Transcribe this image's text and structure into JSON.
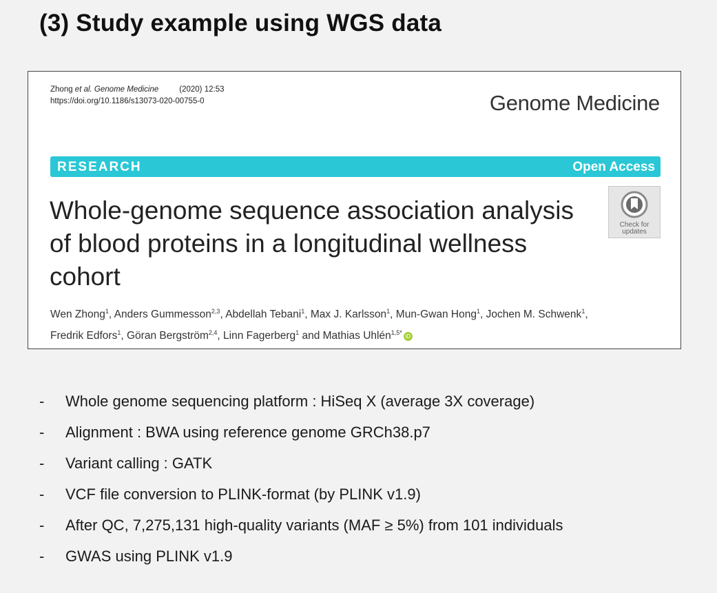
{
  "slide_title": "(3) Study example using WGS data",
  "paper": {
    "citation_authors": "Zhong",
    "citation_etal": " et al. Genome Medicine",
    "citation_year": "(2020) 12:53",
    "doi": "https://doi.org/10.1186/s13073-020-00755-0",
    "journal": "Genome Medicine",
    "banner_left": "RESEARCH",
    "banner_right": "Open Access",
    "banner_color": "#2ac7d6",
    "title": "Whole-genome sequence association analysis of blood proteins in a longitudinal wellness cohort",
    "check_updates": "Check for\nupdates",
    "authors": [
      {
        "name": "Wen Zhong",
        "sup": "1",
        "sep": ", "
      },
      {
        "name": "Anders Gummesson",
        "sup": "2,3",
        "sep": ", "
      },
      {
        "name": "Abdellah Tebani",
        "sup": "1",
        "sep": ", "
      },
      {
        "name": "Max J. Karlsson",
        "sup": "1",
        "sep": ", "
      },
      {
        "name": "Mun-Gwan Hong",
        "sup": "1",
        "sep": ", "
      },
      {
        "name": "Jochen M. Schwenk",
        "sup": "1",
        "sep": ","
      },
      {
        "name": "Fredrik Edfors",
        "sup": "1",
        "sep": ", "
      },
      {
        "name": "Göran Bergström",
        "sup": "2,4",
        "sep": ", "
      },
      {
        "name": "Linn Fagerberg",
        "sup": "1",
        "sep": " and "
      },
      {
        "name": "Mathias Uhlén",
        "sup": "1,5*",
        "sep": ""
      }
    ]
  },
  "bullets": [
    "Whole genome sequencing platform : HiSeq X (average 3X coverage)",
    "Alignment : BWA using reference genome GRCh38.p7",
    "Variant calling : GATK",
    "VCF file conversion to PLINK-format (by PLINK v1.9)",
    "After QC, 7,275,131 high-quality variants (MAF ≥ 5%) from 101 individuals",
    "GWAS using PLINK v1.9"
  ],
  "bullet_marker": "-"
}
